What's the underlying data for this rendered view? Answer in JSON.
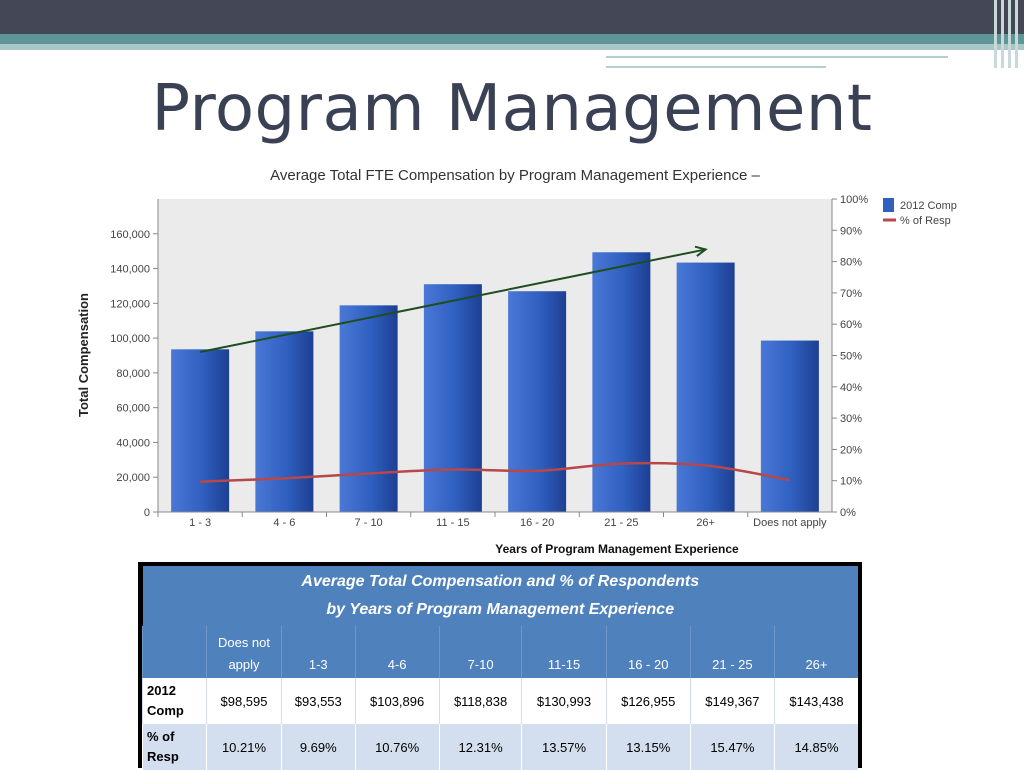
{
  "slide": {
    "title": "Program Management"
  },
  "chart_data": {
    "type": "bar",
    "title": "Average Total FTE Compensation by Program Management Experience –",
    "xlabel": "Years of Program Management Experience",
    "ylabel": "Total Compensation",
    "categories": [
      "1 - 3",
      "4 - 6",
      "7 - 10",
      "11 - 15",
      "16 - 20",
      "21 - 25",
      "26+",
      "Does not apply"
    ],
    "ylim": [
      0,
      180000
    ],
    "yticks": [
      0,
      20000,
      40000,
      60000,
      80000,
      100000,
      120000,
      140000,
      160000
    ],
    "ytick_labels": [
      "0",
      "20,000",
      "40,000",
      "60,000",
      "80,000",
      "100,000",
      "120,000",
      "140,000",
      "160,000"
    ],
    "y2lim": [
      0,
      100
    ],
    "y2ticks": [
      0,
      10,
      20,
      30,
      40,
      50,
      60,
      70,
      80,
      90,
      100
    ],
    "y2tick_labels": [
      "0%",
      "10%",
      "20%",
      "30%",
      "40%",
      "50%",
      "60%",
      "70%",
      "80%",
      "90%",
      "100%"
    ],
    "series": [
      {
        "name": "2012 Comp",
        "kind": "bar",
        "axis": "left",
        "color": "#2f5fbf",
        "values": [
          93553,
          103896,
          118838,
          130993,
          126955,
          149367,
          143438,
          98595
        ]
      },
      {
        "name": "% of Resp",
        "kind": "line",
        "axis": "right",
        "color": "#b8474a",
        "values": [
          9.69,
          10.76,
          12.31,
          13.57,
          13.15,
          15.47,
          14.85,
          10.21
        ]
      }
    ],
    "trend_arrow": {
      "color": "#1e4d1e",
      "from": {
        "category": "1 - 3",
        "value": 92000
      },
      "to": {
        "category": "26+",
        "value": 151000
      }
    },
    "legend": "right",
    "grid": false
  },
  "table": {
    "caption_line1": "Average Total Compensation and % of Respondents",
    "caption_line2": "by Years of Program Management Experience",
    "headers": [
      "",
      "Does not apply",
      "1-3",
      "4-6",
      "7-10",
      "11-15",
      "16 - 20",
      "21 - 25",
      "26+"
    ],
    "rows": [
      {
        "label": "2012 Comp",
        "values": [
          "$98,595",
          "$93,553",
          "$103,896",
          "$118,838",
          "$130,993",
          "$126,955",
          "$149,367",
          "$143,438"
        ]
      },
      {
        "label": "% of Resp",
        "values": [
          "10.21%",
          "9.69%",
          "10.76%",
          "12.31%",
          "13.57%",
          "13.15%",
          "15.47%",
          "14.85%"
        ]
      }
    ]
  }
}
